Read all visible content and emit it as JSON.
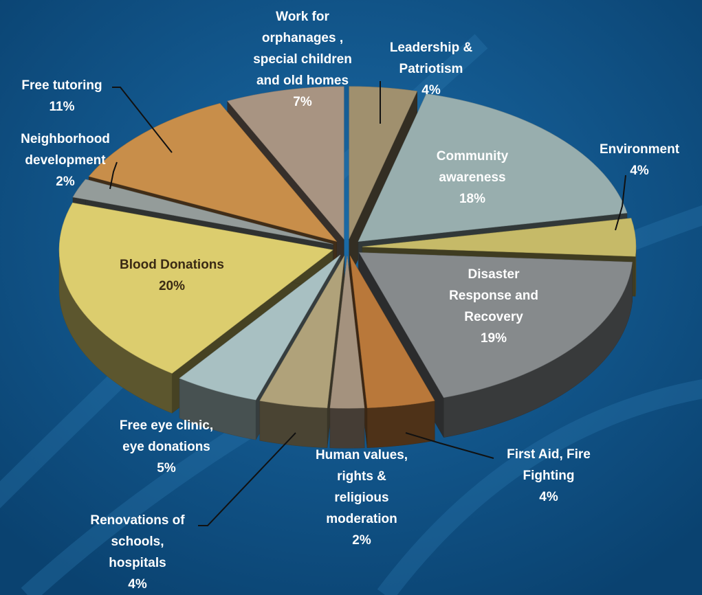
{
  "chart_data": {
    "type": "pie",
    "title": "",
    "slices": [
      {
        "label": "Leadership & Patriotism",
        "value": 4,
        "value_label": "4%",
        "color": "#a0906e"
      },
      {
        "label": "Community awareness",
        "value": 18,
        "value_label": "18%",
        "color": "#98aeae"
      },
      {
        "label": "Environment",
        "value": 4,
        "value_label": "4%",
        "color": "#c6ba68"
      },
      {
        "label": "Disaster Response and Recovery",
        "value": 19,
        "value_label": "19%",
        "color": "#868a8c"
      },
      {
        "label": "First Aid, Fire Fighting",
        "value": 4,
        "value_label": "4%",
        "color": "#b9783a"
      },
      {
        "label": "Human values, rights & religious moderation",
        "value": 2,
        "value_label": "2%",
        "color": "#a4927e"
      },
      {
        "label": "Renovations of schools, hospitals",
        "value": 4,
        "value_label": "4%",
        "color": "#b0a27a"
      },
      {
        "label": "Free eye clinic, eye donations",
        "value": 5,
        "value_label": "5%",
        "color": "#a8c0c2"
      },
      {
        "label": "Blood Donations",
        "value": 20,
        "value_label": "20%",
        "color": "#dccd6e"
      },
      {
        "label": "Neighborhood development",
        "value": 2,
        "value_label": "2%",
        "color": "#949c9a"
      },
      {
        "label": "Free tutoring",
        "value": 11,
        "value_label": "11%",
        "color": "#c88e4a"
      },
      {
        "label": "Work for orphanages , special children and old homes",
        "value": 7,
        "value_label": "7%",
        "color": "#a89482"
      }
    ]
  },
  "labels": {
    "leadership": {
      "lines": [
        "Leadership &",
        "Patriotism"
      ],
      "pct": "4%"
    },
    "community": {
      "lines": [
        "Community",
        "awareness"
      ],
      "pct": "18%"
    },
    "environment": {
      "lines": [
        "Environment"
      ],
      "pct": "4%"
    },
    "disaster": {
      "lines": [
        "Disaster",
        "Response and",
        "Recovery"
      ],
      "pct": "19%"
    },
    "firstaid": {
      "lines": [
        "First Aid, Fire",
        "Fighting"
      ],
      "pct": "4%"
    },
    "human": {
      "lines": [
        "Human values,",
        "rights &",
        "religious",
        "moderation"
      ],
      "pct": "2%"
    },
    "renovations": {
      "lines": [
        "Renovations of",
        "schools,",
        "hospitals"
      ],
      "pct": "4%"
    },
    "eyeclinic": {
      "lines": [
        "Free eye clinic,",
        "eye donations"
      ],
      "pct": "5%"
    },
    "blood": {
      "lines": [
        "Blood Donations"
      ],
      "pct": "20%"
    },
    "neighborhood": {
      "lines": [
        "Neighborhood",
        "development"
      ],
      "pct": "2%"
    },
    "tutoring": {
      "lines": [
        "Free tutoring"
      ],
      "pct": "11%"
    },
    "orphanages": {
      "lines": [
        "Work for",
        "orphanages ,",
        "special children",
        "and old homes"
      ],
      "pct": "7%"
    }
  },
  "colors": {
    "background": "#0d4f82",
    "label_light": "#ffffff",
    "label_dark": "#3a2a14",
    "leader_line": "#111111"
  }
}
